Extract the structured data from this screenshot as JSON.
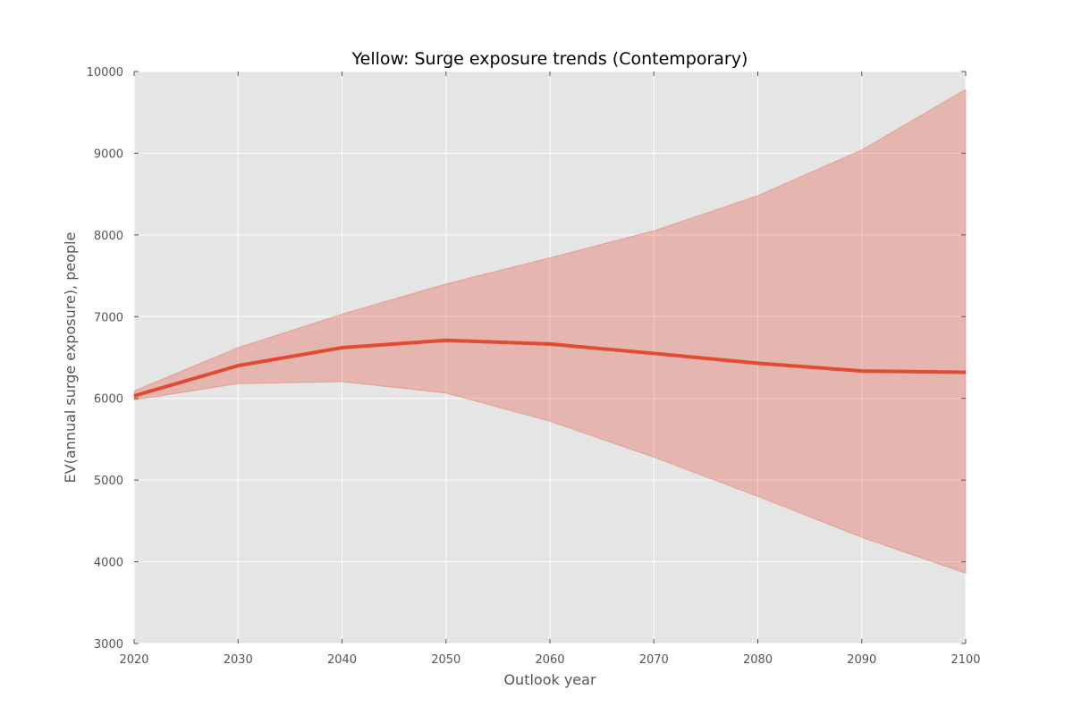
{
  "chart_data": {
    "type": "line",
    "title": "Yellow: Surge exposure trends (Contemporary)",
    "xlabel": "Outlook year",
    "ylabel": "EV(annual surge exposure), people",
    "xlim": [
      2020,
      2100
    ],
    "ylim": [
      3000,
      10000
    ],
    "x_ticks": [
      2020,
      2030,
      2040,
      2050,
      2060,
      2070,
      2080,
      2090,
      2100
    ],
    "y_ticks": [
      3000,
      4000,
      5000,
      6000,
      7000,
      8000,
      9000,
      10000
    ],
    "grid": true,
    "legend": "none",
    "x": [
      2020,
      2030,
      2040,
      2050,
      2060,
      2070,
      2080,
      2090,
      2100
    ],
    "series": [
      {
        "values": [
          6030,
          6400,
          6620,
          6710,
          6665,
          6550,
          6430,
          6335,
          6320
        ],
        "color": "#e24a33"
      }
    ],
    "band": {
      "upper": [
        6090,
        6620,
        7030,
        7400,
        7720,
        8050,
        8480,
        9040,
        9780
      ],
      "lower": [
        5980,
        6180,
        6205,
        6065,
        5720,
        5280,
        4800,
        4300,
        3860
      ],
      "color": "#e24a33"
    },
    "colors": {
      "plot_background": "#e5e5e5",
      "grid": "#ffffff",
      "line": "#e24a33"
    }
  }
}
